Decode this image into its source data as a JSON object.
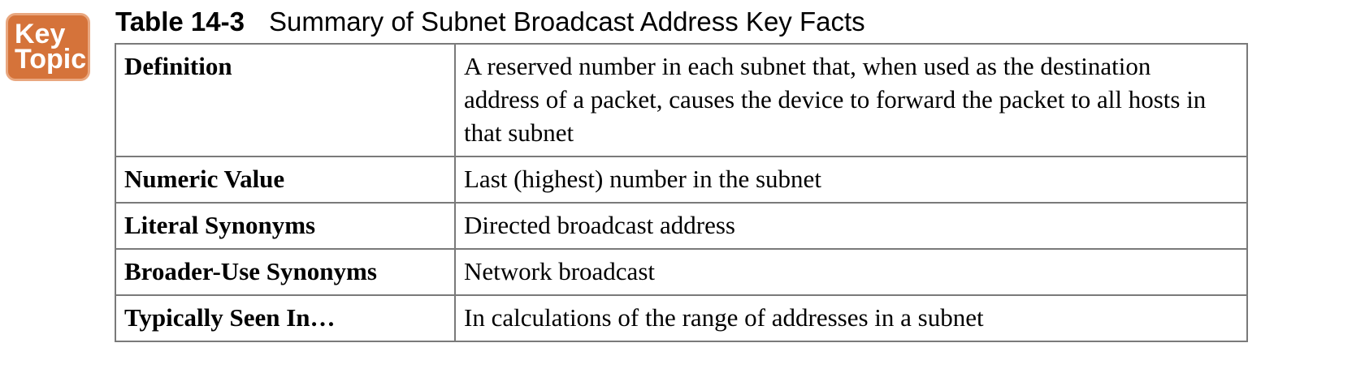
{
  "badge": {
    "line1": "Key",
    "line2": "Topic"
  },
  "caption": {
    "number": "Table 14-3",
    "title": "Summary of Subnet Broadcast Address Key Facts"
  },
  "rows": [
    {
      "label": "Definition",
      "value": "A reserved number in each subnet that, when used as the destination address of a packet, causes the device to forward the packet to all hosts in that subnet"
    },
    {
      "label": "Numeric Value",
      "value": "Last (highest) number in the subnet"
    },
    {
      "label": "Literal Synonyms",
      "value": "Directed broadcast address"
    },
    {
      "label": "Broader-Use Synonyms",
      "value": "Network broadcast"
    },
    {
      "label": "Typically Seen In…",
      "value": "In calculations of the range of addresses in a subnet"
    }
  ]
}
